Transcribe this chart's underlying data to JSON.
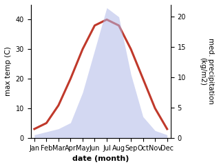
{
  "months": [
    "Jan",
    "Feb",
    "Mar",
    "Apr",
    "May",
    "Jun",
    "Jul",
    "Aug",
    "Sep",
    "Oct",
    "Nov",
    "Dec"
  ],
  "temp": [
    3.0,
    5.0,
    11.0,
    20.0,
    30.0,
    38.0,
    40.0,
    38.0,
    30.0,
    20.0,
    10.0,
    3.0
  ],
  "precip": [
    0.5,
    1.0,
    1.5,
    2.5,
    7.5,
    14.5,
    21.5,
    20.0,
    10.5,
    3.5,
    1.2,
    0.5
  ],
  "temp_color": "#c0392b",
  "fill_color": "#b0b8e8",
  "fill_alpha": 0.55,
  "xlabel": "date (month)",
  "ylabel_left": "max temp (C)",
  "ylabel_right": "med. precipitation\n(kg/m2)",
  "ylim_left": [
    0,
    45
  ],
  "ylim_right": [
    0,
    22
  ],
  "yticks_left": [
    0,
    10,
    20,
    30,
    40
  ],
  "yticks_right": [
    0,
    5,
    10,
    15,
    20
  ],
  "bg_color": "#ffffff",
  "line_width": 2.2,
  "tick_font_size": 7.0,
  "label_font_size": 7.5,
  "xlabel_font_size": 8.0
}
